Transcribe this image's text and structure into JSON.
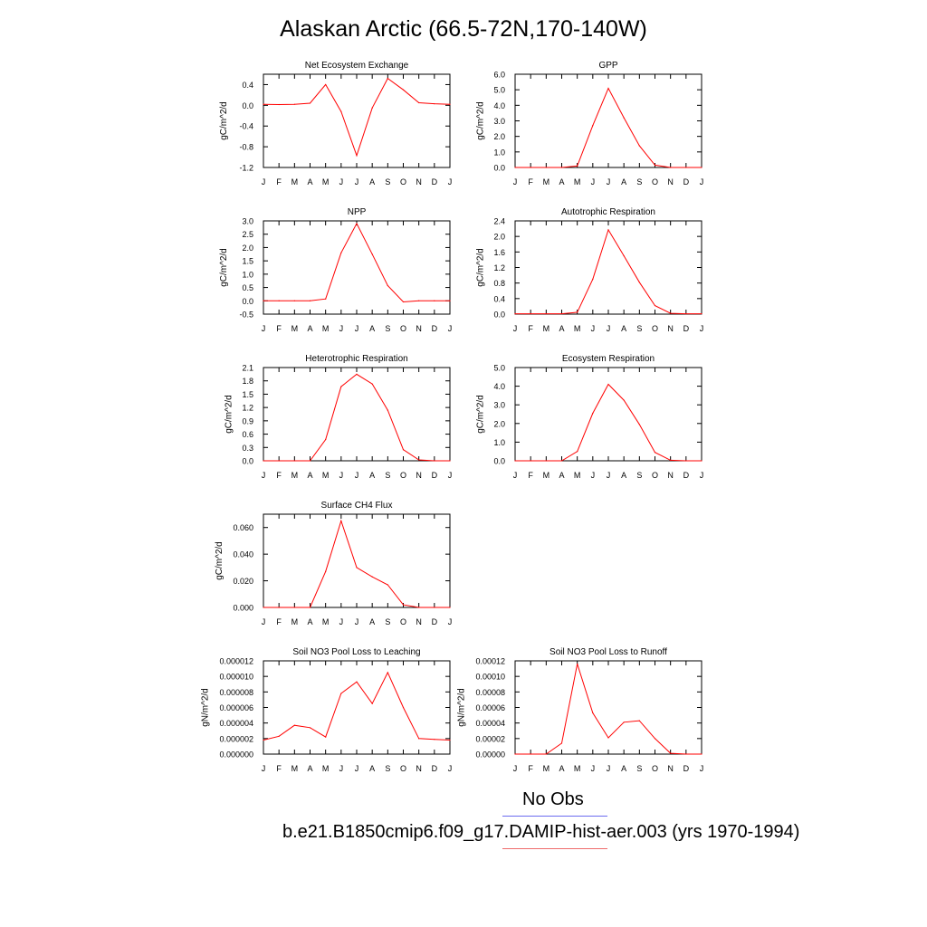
{
  "page": {
    "title": "Alaskan Arctic (66.5-72N,170-140W)"
  },
  "legend": {
    "obs_label": "No Obs",
    "obs_color": "#6b6bef",
    "model_label": "b.e21.B1850cmip6.f09_g17.DAMIP-hist-aer.003 (yrs 1970-1994)",
    "model_color": "#ef6b6b"
  },
  "line_color": "#ff0000",
  "chart_data": [
    {
      "type": "line",
      "title": "Net Ecosystem Exchange",
      "xlabel": "",
      "ylabel": "gC/m^2/d",
      "categories": [
        "J",
        "F",
        "M",
        "A",
        "M",
        "J",
        "J",
        "A",
        "S",
        "O",
        "N",
        "D",
        "J"
      ],
      "ylim": [
        -1.2,
        0.6
      ],
      "yticks": [
        -1.2,
        -0.8,
        -0.4,
        0.0,
        0.4
      ],
      "ytick_labels": [
        "-1.2",
        "-0.8",
        "-0.4",
        "0.0",
        "0.4"
      ],
      "values": [
        0.02,
        0.015,
        0.02,
        0.04,
        0.4,
        -0.12,
        -0.97,
        -0.05,
        0.52,
        0.3,
        0.05,
        0.03,
        0.02
      ]
    },
    {
      "type": "line",
      "title": "GPP",
      "xlabel": "",
      "ylabel": "gC/m^2/d",
      "categories": [
        "J",
        "F",
        "M",
        "A",
        "M",
        "J",
        "J",
        "A",
        "S",
        "O",
        "N",
        "D",
        "J"
      ],
      "ylim": [
        0.0,
        6.0
      ],
      "yticks": [
        0.0,
        1.0,
        2.0,
        3.0,
        4.0,
        5.0,
        6.0
      ],
      "ytick_labels": [
        "0.0",
        "1.0",
        "2.0",
        "3.0",
        "4.0",
        "5.0",
        "6.0"
      ],
      "values": [
        0.0,
        0.0,
        0.0,
        0.0,
        0.1,
        2.7,
        5.1,
        3.2,
        1.4,
        0.15,
        0.0,
        0.0,
        0.0
      ]
    },
    {
      "type": "line",
      "title": "NPP",
      "xlabel": "",
      "ylabel": "gC/m^2/d",
      "categories": [
        "J",
        "F",
        "M",
        "A",
        "M",
        "J",
        "J",
        "A",
        "S",
        "O",
        "N",
        "D",
        "J"
      ],
      "ylim": [
        -0.5,
        3.0
      ],
      "yticks": [
        -0.5,
        0.0,
        0.5,
        1.0,
        1.5,
        2.0,
        2.5,
        3.0
      ],
      "ytick_labels": [
        "-0.5",
        "0.0",
        "0.5",
        "1.0",
        "1.5",
        "2.0",
        "2.5",
        "3.0"
      ],
      "values": [
        0.0,
        0.0,
        0.0,
        0.0,
        0.07,
        1.8,
        2.9,
        1.75,
        0.57,
        -0.04,
        0.0,
        0.0,
        0.0
      ]
    },
    {
      "type": "line",
      "title": "Autotrophic Respiration",
      "xlabel": "",
      "ylabel": "gC/m^2/d",
      "categories": [
        "J",
        "F",
        "M",
        "A",
        "M",
        "J",
        "J",
        "A",
        "S",
        "O",
        "N",
        "D",
        "J"
      ],
      "ylim": [
        0.0,
        2.4
      ],
      "yticks": [
        0.0,
        0.4,
        0.8,
        1.2,
        1.6,
        2.0,
        2.4
      ],
      "ytick_labels": [
        "0.0",
        "0.4",
        "0.8",
        "1.2",
        "1.6",
        "2.0",
        "2.4"
      ],
      "values": [
        0.01,
        0.01,
        0.01,
        0.01,
        0.05,
        0.9,
        2.17,
        1.5,
        0.82,
        0.22,
        0.02,
        0.01,
        0.01
      ]
    },
    {
      "type": "line",
      "title": "Heterotrophic Respiration",
      "xlabel": "",
      "ylabel": "gC/m^2/d",
      "categories": [
        "J",
        "F",
        "M",
        "A",
        "M",
        "J",
        "J",
        "A",
        "S",
        "O",
        "N",
        "D",
        "J"
      ],
      "ylim": [
        0.0,
        2.1
      ],
      "yticks": [
        0.0,
        0.3,
        0.6,
        0.9,
        1.2,
        1.5,
        1.8,
        2.1
      ],
      "ytick_labels": [
        "0.0",
        "0.3",
        "0.6",
        "0.9",
        "1.2",
        "1.5",
        "1.8",
        "2.1"
      ],
      "values": [
        0.0,
        0.0,
        0.0,
        0.0,
        0.48,
        1.67,
        1.95,
        1.73,
        1.14,
        0.25,
        0.02,
        0.0,
        0.0
      ]
    },
    {
      "type": "line",
      "title": "Ecosystem Respiration",
      "xlabel": "",
      "ylabel": "gC/m^2/d",
      "categories": [
        "J",
        "F",
        "M",
        "A",
        "M",
        "J",
        "J",
        "A",
        "S",
        "O",
        "N",
        "D",
        "J"
      ],
      "ylim": [
        0.0,
        5.0
      ],
      "yticks": [
        0.0,
        1.0,
        2.0,
        3.0,
        4.0,
        5.0
      ],
      "ytick_labels": [
        "0.0",
        "1.0",
        "2.0",
        "3.0",
        "4.0",
        "5.0"
      ],
      "values": [
        0.0,
        0.0,
        0.0,
        0.0,
        0.5,
        2.55,
        4.1,
        3.25,
        1.95,
        0.45,
        0.03,
        0.0,
        0.0
      ]
    },
    {
      "type": "line",
      "title": "Surface CH4 Flux",
      "xlabel": "",
      "ylabel": "gC/m^2/d",
      "categories": [
        "J",
        "F",
        "M",
        "A",
        "M",
        "J",
        "J",
        "A",
        "S",
        "O",
        "N",
        "D",
        "J"
      ],
      "ylim": [
        0.0,
        0.07
      ],
      "yticks": [
        0.0,
        0.02,
        0.04,
        0.06
      ],
      "ytick_labels": [
        "0.000",
        "0.020",
        "0.040",
        "0.060"
      ],
      "values": [
        0.0,
        0.0,
        0.0,
        0.0,
        0.027,
        0.065,
        0.03,
        0.023,
        0.017,
        0.002,
        0.0,
        0.0,
        0.0
      ]
    },
    {
      "type": "line",
      "title": "Soil NO3 Pool Loss to Leaching",
      "xlabel": "",
      "ylabel": "gN/m^2/d",
      "categories": [
        "J",
        "F",
        "M",
        "A",
        "M",
        "J",
        "J",
        "A",
        "S",
        "O",
        "N",
        "D",
        "J"
      ],
      "ylim": [
        0.0,
        1.2e-05
      ],
      "yticks": [
        0.0,
        2e-06,
        4e-06,
        6e-06,
        8e-06,
        1e-05,
        1.2e-05
      ],
      "ytick_labels": [
        "0.000000",
        "0.000002",
        "0.000004",
        "0.000006",
        "0.000008",
        "0.000010",
        "0.000012"
      ],
      "values": [
        1.8e-06,
        2.3e-06,
        3.7e-06,
        3.4e-06,
        2.2e-06,
        7.8e-06,
        9.3e-06,
        6.5e-06,
        1.05e-05,
        6e-06,
        2e-06,
        1.9e-06,
        1.8e-06
      ]
    },
    {
      "type": "line",
      "title": "Soil NO3 Pool Loss to Runoff",
      "xlabel": "",
      "ylabel": "gN/m^2/d",
      "categories": [
        "J",
        "F",
        "M",
        "A",
        "M",
        "J",
        "J",
        "A",
        "S",
        "O",
        "N",
        "D",
        "J"
      ],
      "ylim": [
        0.0,
        0.00012
      ],
      "yticks": [
        0.0,
        2e-05,
        4e-05,
        6e-05,
        8e-05,
        0.0001,
        0.00012
      ],
      "ytick_labels": [
        "0.00000",
        "0.00002",
        "0.00004",
        "0.00006",
        "0.00008",
        "0.00010",
        "0.00012"
      ],
      "values": [
        0.0,
        0.0,
        0.0,
        1.4e-05,
        0.000116,
        5.3e-05,
        2.1e-05,
        4.1e-05,
        4.3e-05,
        2e-05,
        1e-06,
        0.0,
        0.0
      ]
    }
  ]
}
